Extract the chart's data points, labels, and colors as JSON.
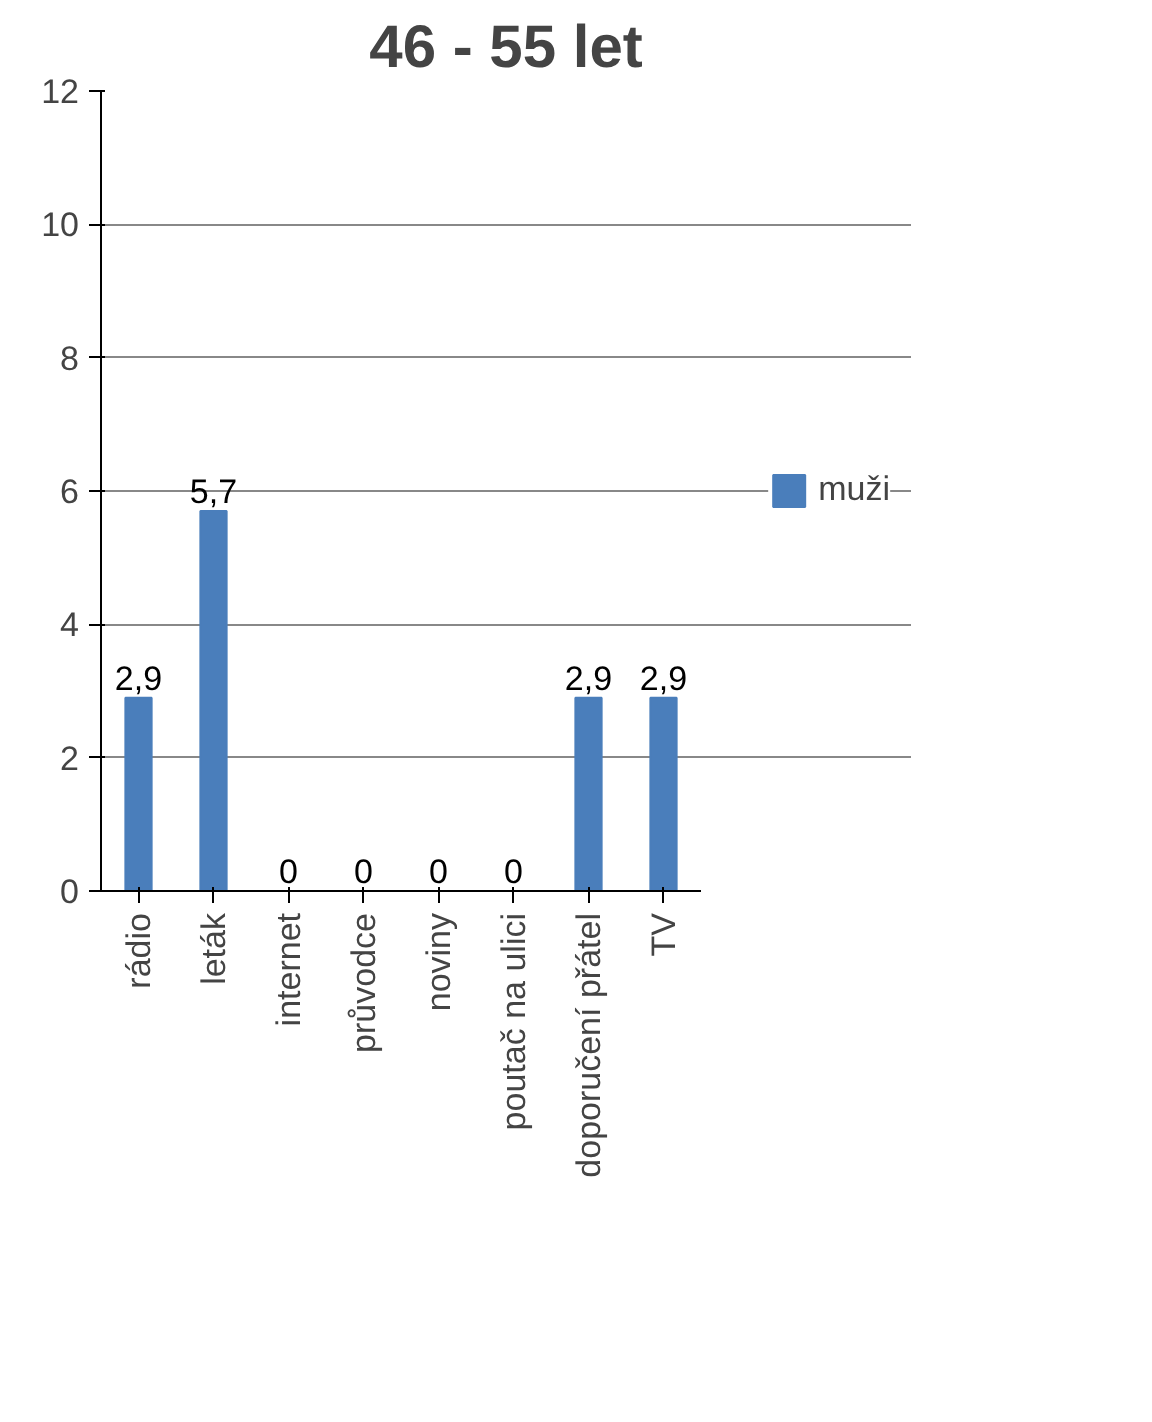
{
  "chart_data": {
    "type": "bar",
    "title": "46 - 55 let",
    "categories": [
      "rádio",
      "leták",
      "internet",
      "průvodce",
      "noviny",
      "poutač na ulici",
      "doporučení přátel",
      "TV"
    ],
    "series": [
      {
        "name": "muži",
        "color": "#4a7ebb",
        "values": [
          2.9,
          5.7,
          0,
          0,
          0,
          0,
          2.9,
          2.9
        ],
        "value_labels": [
          "2,9",
          "5,7",
          "0",
          "0",
          "0",
          "0",
          "2,9",
          "2,9"
        ]
      }
    ],
    "ylim": [
      0,
      12
    ],
    "yticks": [
      0,
      2,
      4,
      6,
      8,
      10,
      12
    ],
    "grid": "y",
    "legend": "right"
  }
}
